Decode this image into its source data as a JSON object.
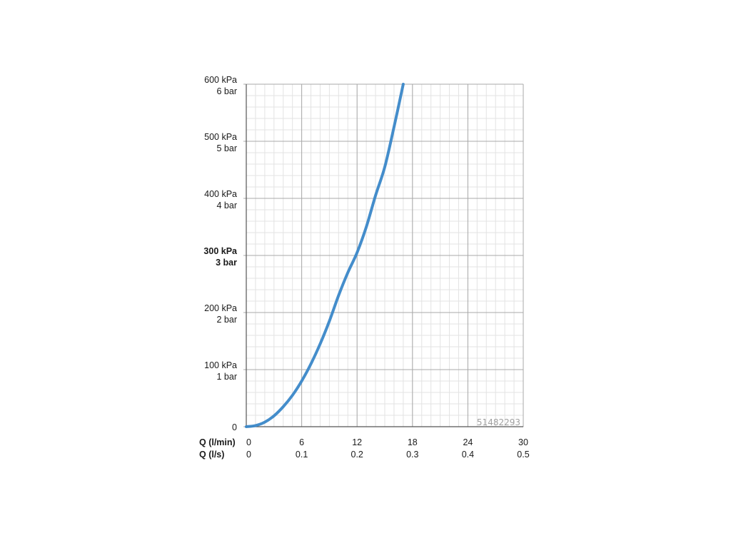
{
  "chart_data": {
    "type": "line",
    "title": "",
    "xlabel": "",
    "ylabel": "",
    "x_axis_rows": [
      {
        "label": "Q (l/min)",
        "ticks": [
          "0",
          "6",
          "12",
          "18",
          "24",
          "30"
        ]
      },
      {
        "label": "Q (l/s)",
        "ticks": [
          "0",
          "0.1",
          "0.2",
          "0.3",
          "0.4",
          "0.5"
        ]
      }
    ],
    "y_ticks": [
      {
        "value": 0,
        "kpa": "0",
        "bar": "",
        "bold": false
      },
      {
        "value": 100,
        "kpa": "100 kPa",
        "bar": "1 bar",
        "bold": false
      },
      {
        "value": 200,
        "kpa": "200 kPa",
        "bar": "2 bar",
        "bold": false
      },
      {
        "value": 300,
        "kpa": "300 kPa",
        "bar": "3 bar",
        "bold": true
      },
      {
        "value": 400,
        "kpa": "400 kPa",
        "bar": "4 bar",
        "bold": false
      },
      {
        "value": 500,
        "kpa": "500 kPa",
        "bar": "5 bar",
        "bold": false
      },
      {
        "value": 600,
        "kpa": "600 kPa",
        "bar": "6 bar",
        "bold": false
      }
    ],
    "xlim": [
      0,
      30
    ],
    "ylim": [
      0,
      600
    ],
    "grid": true,
    "series": [
      {
        "color": "#3a87c8",
        "x": [
          0,
          1,
          2,
          3,
          4,
          5,
          6,
          7,
          8,
          9,
          10,
          11,
          12,
          13,
          14,
          15,
          16,
          17
        ],
        "y": [
          0,
          2,
          8,
          19,
          35,
          55,
          80,
          110,
          145,
          185,
          230,
          270,
          305,
          350,
          405,
          455,
          525,
          600
        ]
      }
    ],
    "annotations": [
      {
        "text": "51482293"
      }
    ]
  }
}
